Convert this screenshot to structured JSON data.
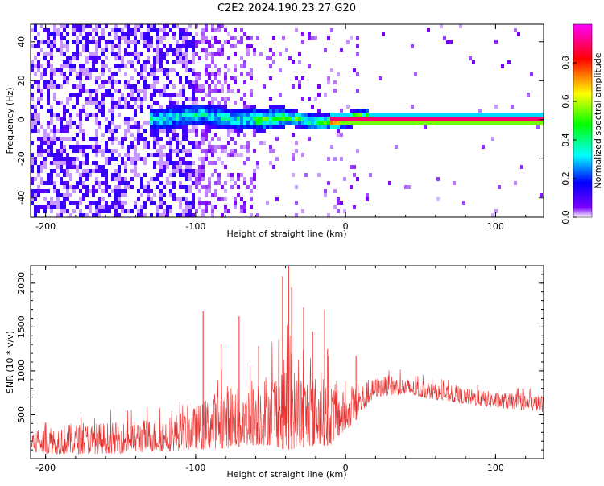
{
  "title": "C2E2.2024.190.23.27.G20",
  "chart_data": [
    {
      "type": "heatmap",
      "xlabel": "Height of straight line (km)",
      "ylabel": "Frequency (Hz)",
      "xlim": [
        -210,
        132
      ],
      "ylim": [
        -50,
        49
      ],
      "xticks": [
        -200,
        -100,
        0,
        100
      ],
      "yticks": [
        -40,
        -20,
        0,
        20,
        40
      ],
      "colorbar": {
        "label": "Normalized spectral amplitude",
        "ticks": [
          "0.0",
          "0.2",
          "0.4",
          "0.6",
          "0.8"
        ],
        "tick_values": [
          0.0,
          0.2,
          0.4,
          0.6,
          0.8
        ],
        "range": [
          0,
          1
        ],
        "colormap": [
          "#ffffff",
          "#7b00ff",
          "#0000ff",
          "#00ffff",
          "#00ff00",
          "#ffff00",
          "#ff0000",
          "#ff00ff"
        ]
      },
      "features": [
        {
          "description": "broadband noise",
          "x_range": [
            -210,
            -100
          ],
          "y_range": [
            -50,
            49
          ],
          "amplitude": 0.1
        },
        {
          "description": "signal band",
          "x_range": [
            -130,
            15
          ],
          "center_y": 0,
          "half_width": 6,
          "amplitude": 0.45
        },
        {
          "description": "carrier",
          "x_range": [
            0,
            132
          ],
          "center_y": 0,
          "half_width": 1.5,
          "amplitude": 0.9
        }
      ]
    },
    {
      "type": "line",
      "xlabel": "Height of straight line (km)",
      "ylabel": "SNR (10 * v/v)",
      "xlim": [
        -210,
        132
      ],
      "ylim": [
        0,
        2200
      ],
      "xticks": [
        -200,
        -100,
        0,
        100
      ],
      "yticks": [
        500,
        1000,
        1500,
        2000
      ],
      "color": "#e8312f",
      "envelope": {
        "x": [
          -210,
          -180,
          -150,
          -120,
          -100,
          -80,
          -60,
          -50,
          -40,
          -30,
          -20,
          -10,
          0,
          10,
          20,
          30,
          40,
          60,
          80,
          100,
          132
        ],
        "low": [
          50,
          50,
          60,
          80,
          100,
          120,
          150,
          150,
          100,
          120,
          150,
          150,
          300,
          500,
          700,
          720,
          720,
          670,
          620,
          580,
          530
        ],
        "high": [
          380,
          400,
          420,
          480,
          600,
          850,
          950,
          1000,
          1150,
          1000,
          950,
          900,
          750,
          850,
          920,
          950,
          920,
          850,
          800,
          760,
          720
        ]
      },
      "spikes": [
        {
          "x": -95,
          "y": 1680
        },
        {
          "x": -83,
          "y": 1300
        },
        {
          "x": -71,
          "y": 1620
        },
        {
          "x": -58,
          "y": 1280
        },
        {
          "x": -42,
          "y": 2080
        },
        {
          "x": -38,
          "y": 2200
        },
        {
          "x": -36,
          "y": 1950
        },
        {
          "x": -28,
          "y": 1720
        },
        {
          "x": -22,
          "y": 1450
        },
        {
          "x": -14,
          "y": 1700
        },
        {
          "x": -12,
          "y": 1250
        },
        {
          "x": 7,
          "y": 1170
        }
      ]
    }
  ]
}
